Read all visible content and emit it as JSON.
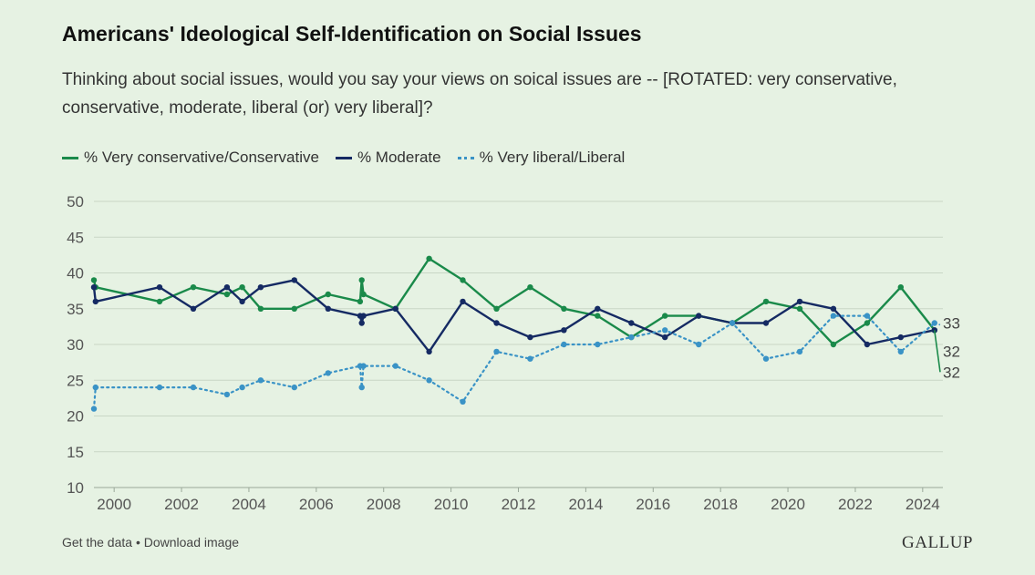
{
  "chart_data": {
    "type": "line",
    "title": "Americans' Ideological Self-Identification on Social Issues",
    "subtitle": "Thinking about social issues, would you say your views on soical issues are -- [ROTATED: very conservative, conservative, moderate, liberal (or) very liberal]?",
    "xlabel": "",
    "ylabel": "",
    "ylim": [
      10,
      50
    ],
    "yticks": [
      10,
      15,
      20,
      25,
      30,
      35,
      40,
      45,
      50
    ],
    "xlim": [
      1999.4,
      2024.6
    ],
    "xticks": [
      2000,
      2002,
      2004,
      2006,
      2008,
      2010,
      2012,
      2014,
      2016,
      2018,
      2020,
      2022,
      2024
    ],
    "grid": true,
    "legend_position": "top-left",
    "series": [
      {
        "name": "% Very conservative/Conservative",
        "color": "#1a8a4a",
        "style": "solid",
        "end_label": "32",
        "x": [
          1999.4,
          1999.45,
          2001.35,
          2002.35,
          2003.35,
          2003.8,
          2004.35,
          2005.35,
          2006.35,
          2007.3,
          2007.35,
          2007.4,
          2008.35,
          2009.35,
          2010.35,
          2011.35,
          2012.35,
          2013.35,
          2014.35,
          2015.35,
          2016.35,
          2017.35,
          2018.35,
          2019.35,
          2020.35,
          2021.35,
          2022.35,
          2023.35,
          2024.35
        ],
        "y": [
          39,
          38,
          36,
          38,
          37,
          38,
          35,
          35,
          37,
          36,
          39,
          37,
          35,
          42,
          39,
          35,
          38,
          35,
          34,
          31,
          34,
          34,
          33,
          36,
          35,
          30,
          33,
          38,
          32
        ]
      },
      {
        "name": "% Moderate",
        "color": "#152a63",
        "style": "solid",
        "end_label": "32",
        "x": [
          1999.4,
          1999.45,
          2001.35,
          2002.35,
          2003.35,
          2003.8,
          2004.35,
          2005.35,
          2006.35,
          2007.3,
          2007.35,
          2007.4,
          2008.35,
          2009.35,
          2010.35,
          2011.35,
          2012.35,
          2013.35,
          2014.35,
          2015.35,
          2016.35,
          2017.35,
          2018.35,
          2019.35,
          2020.35,
          2021.35,
          2022.35,
          2023.35,
          2024.35
        ],
        "y": [
          38,
          36,
          38,
          35,
          38,
          36,
          38,
          39,
          35,
          34,
          33,
          34,
          35,
          29,
          36,
          33,
          31,
          32,
          35,
          33,
          31,
          34,
          33,
          33,
          36,
          35,
          30,
          31,
          32
        ]
      },
      {
        "name": "% Very liberal/Liberal",
        "color": "#3a93c6",
        "style": "dotted",
        "end_label": "33",
        "x": [
          1999.4,
          1999.45,
          2001.35,
          2002.35,
          2003.35,
          2003.8,
          2004.35,
          2005.35,
          2006.35,
          2007.3,
          2007.35,
          2007.4,
          2008.35,
          2009.35,
          2010.35,
          2011.35,
          2012.35,
          2013.35,
          2014.35,
          2015.35,
          2016.35,
          2017.35,
          2018.35,
          2019.35,
          2020.35,
          2021.35,
          2022.35,
          2023.35,
          2024.35
        ],
        "y": [
          21,
          24,
          24,
          24,
          23,
          24,
          25,
          24,
          26,
          27,
          24,
          27,
          27,
          25,
          22,
          29,
          28,
          30,
          30,
          31,
          32,
          30,
          33,
          28,
          29,
          34,
          34,
          29,
          33
        ]
      }
    ]
  },
  "footer": {
    "links": "Get the data • Download image",
    "brand": "GALLUP"
  }
}
